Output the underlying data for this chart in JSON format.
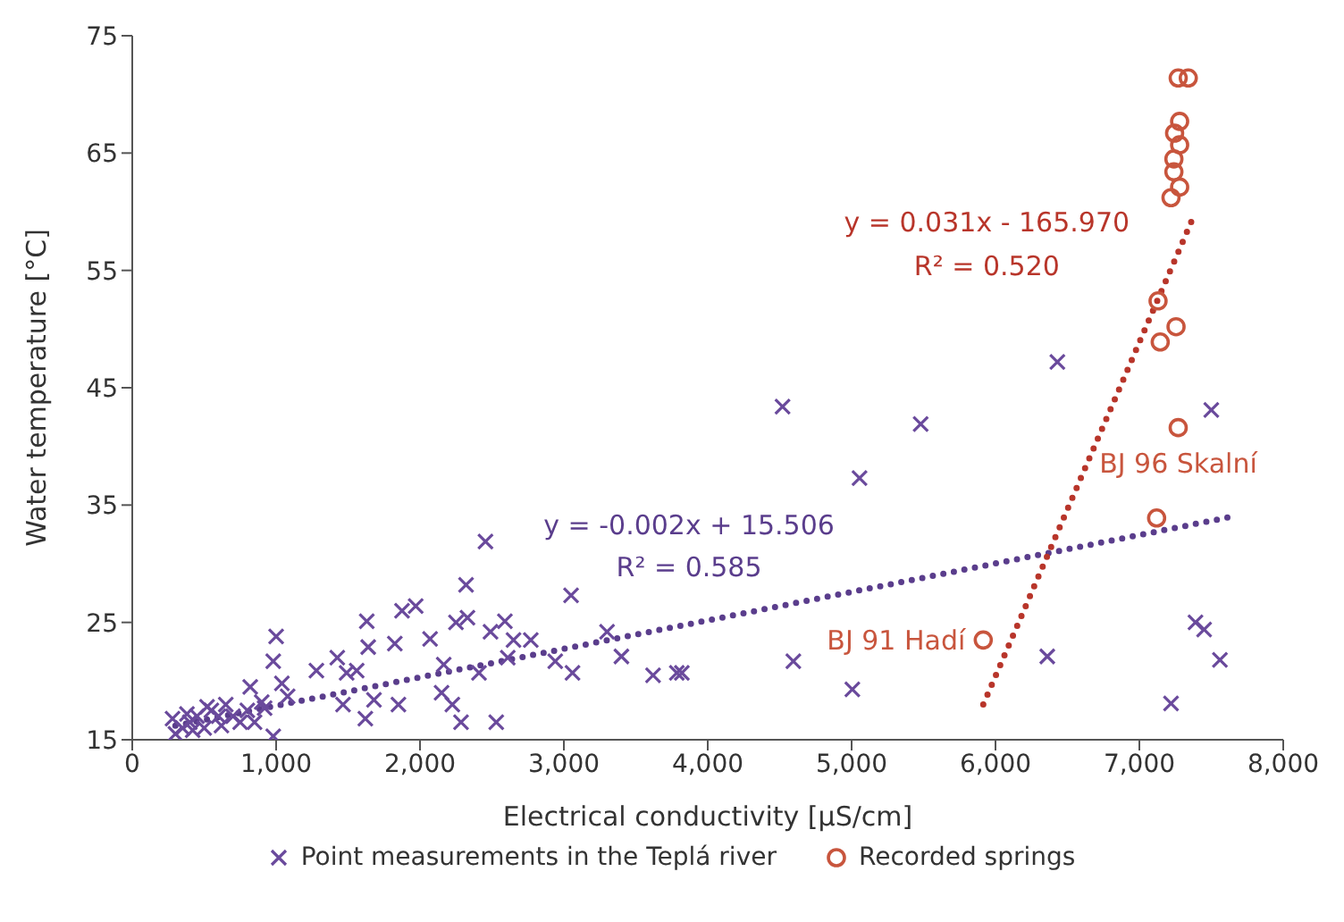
{
  "chart_data": {
    "type": "scatter",
    "xlabel": "Electrical conductivity [μS/cm]",
    "ylabel": "Water temperature [°C]",
    "xlim": [
      0,
      8000
    ],
    "ylim": [
      15,
      75
    ],
    "xticks": [
      0,
      {
        "value": 1000,
        "label": "1,000"
      },
      {
        "value": 2000,
        "label": "2,000"
      },
      {
        "value": 3000,
        "label": "3,000"
      },
      {
        "value": 4000,
        "label": "4,000"
      },
      {
        "value": 5000,
        "label": "5,000"
      },
      {
        "value": 6000,
        "label": "6,000"
      },
      {
        "value": 7000,
        "label": "7,000"
      },
      {
        "value": 8000,
        "label": "8,000"
      }
    ],
    "yticks": [
      15,
      25,
      35,
      45,
      55,
      65,
      75
    ],
    "grid": false,
    "legend": "bottom",
    "series": [
      {
        "name": "Point measurements in the Teplá river",
        "marker": "cross",
        "color": "#6a4a9c",
        "x": [
          2455,
          2320,
          3050,
          1000,
          1630,
          1875,
          1970,
          2590,
          2070,
          2250,
          2330,
          2490,
          2650,
          2770,
          2940,
          3060,
          3300,
          3400,
          1280,
          1425,
          1490,
          1560,
          1640,
          1825,
          1850,
          1620,
          1465,
          1680,
          2285,
          2530,
          2225,
          2150,
          2410,
          2610,
          2165,
          820,
          980,
          1040,
          1080,
          980,
          920,
          300,
          350,
          400,
          450,
          500,
          550,
          600,
          650,
          700,
          750,
          800,
          850,
          280,
          420,
          380,
          520,
          620,
          900,
          3620,
          3785,
          3820,
          4520,
          5480,
          5055,
          4595,
          5005,
          6430,
          7500,
          6360,
          7390,
          7450,
          7560,
          7220
        ],
        "values": [
          31.9,
          28.2,
          27.3,
          23.8,
          25.1,
          26.0,
          26.4,
          25.1,
          23.6,
          25.0,
          25.4,
          24.2,
          23.5,
          23.5,
          21.7,
          20.7,
          24.2,
          22.1,
          20.9,
          22.0,
          20.7,
          20.9,
          22.9,
          23.2,
          18.0,
          16.8,
          18.0,
          18.4,
          16.5,
          16.5,
          18.0,
          19.0,
          20.7,
          22.0,
          21.4,
          19.5,
          21.7,
          19.8,
          18.7,
          15.3,
          17.7,
          15.5,
          16.0,
          16.5,
          17.0,
          16.0,
          17.5,
          17.0,
          18.0,
          17.0,
          16.5,
          17.5,
          16.5,
          16.8,
          15.8,
          17.2,
          17.8,
          16.2,
          18.2,
          20.5,
          20.7,
          20.7,
          43.4,
          41.9,
          37.3,
          21.7,
          19.3,
          47.2,
          43.1,
          22.1,
          25.0,
          24.4,
          21.8,
          18.1
        ]
      },
      {
        "name": "Recorded springs",
        "marker": "circle",
        "color": "#c8553d",
        "x": [
          7270,
          7340,
          7280,
          7245,
          7280,
          7240,
          7240,
          7280,
          7220,
          7130,
          7255,
          7145,
          7270,
          7120,
          5915
        ],
        "values": [
          71.4,
          71.4,
          67.7,
          66.7,
          65.7,
          64.5,
          63.4,
          62.1,
          61.2,
          52.4,
          50.2,
          48.9,
          41.6,
          33.9,
          23.5
        ]
      },
      {
        "type": "line",
        "marker": "none",
        "line_style": "dotted",
        "color": "#5a3d8c",
        "x": [
          300,
          7640
        ],
        "values": [
          16.2,
          34.0
        ]
      },
      {
        "type": "line",
        "marker": "none",
        "line_style": "dotted",
        "color": "#b8352a",
        "x": [
          5915,
          7370
        ],
        "values": [
          18.0,
          59.4
        ]
      }
    ],
    "annotations": [
      "y = -0.002x + 15.506",
      "R² = 0.585",
      "y = 0.031x - 165.970",
      "R² = 0.520",
      {
        "text": "BJ 91 Hadí",
        "x": 5915,
        "y": 23.5
      },
      {
        "text": "BJ 96 Skalní",
        "x": 7270,
        "y": 41.6
      }
    ]
  }
}
